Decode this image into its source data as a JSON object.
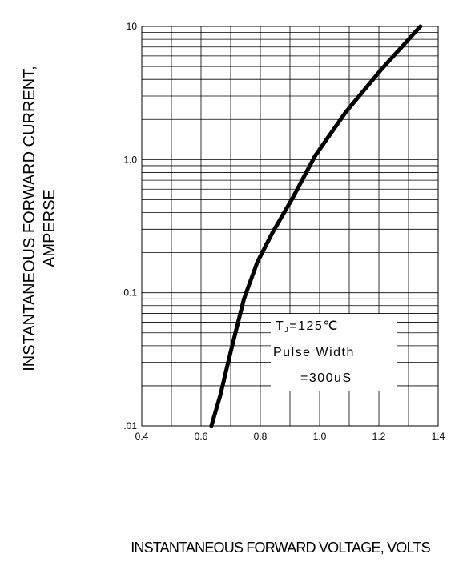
{
  "chart_data": {
    "type": "line",
    "ylabel_lines": [
      "INSTANTANEOUS FORWARD CURRENT,",
      "AMPERSE"
    ],
    "xlabel": "INSTANTANEOUS FORWARD VOLTAGE,  VOLTS",
    "xlim": [
      0.4,
      1.4
    ],
    "ylim": [
      0.01,
      10
    ],
    "yscale": "log",
    "x_ticks": [
      0.4,
      0.6,
      0.8,
      1.0,
      1.2,
      1.4
    ],
    "x_tick_labels": [
      "0.4",
      "0.6",
      "0.8",
      "1.0",
      "1.2",
      "1.4"
    ],
    "y_ticks": [
      0.01,
      0.1,
      1.0,
      10
    ],
    "y_tick_labels": [
      ".01",
      "0.1",
      "1.0",
      "10"
    ],
    "grid": true,
    "series": [
      {
        "x": [
          0.635,
          0.665,
          0.7,
          0.745,
          0.79,
          0.84,
          0.91,
          0.985,
          1.09,
          1.21,
          1.34
        ],
        "y": [
          0.01,
          0.017,
          0.036,
          0.09,
          0.17,
          0.28,
          0.52,
          1.07,
          2.3,
          4.8,
          10
        ],
        "color": "#000000"
      }
    ],
    "annotation": {
      "tj_main": "T",
      "tj_sub": "J",
      "tj_value": "=125℃",
      "line2": "Pulse Width",
      "line3": "=300uS"
    }
  }
}
